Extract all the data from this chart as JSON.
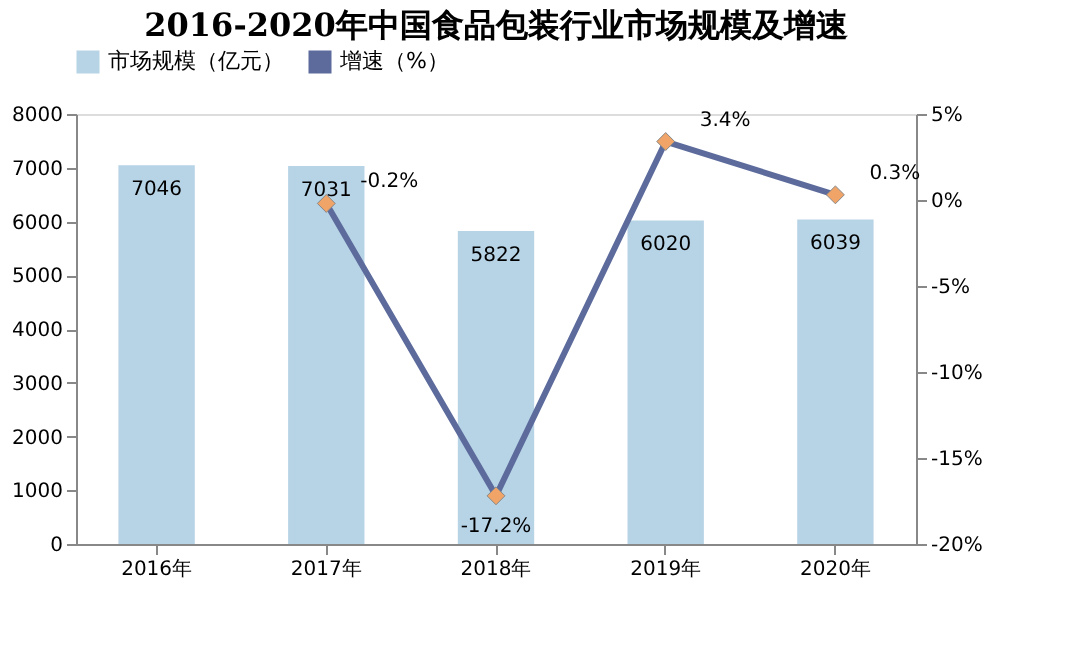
{
  "chart_data": {
    "type": "bar",
    "title": "2016-2020年中国食品包装行业市场规模及增速",
    "categories": [
      "2016年",
      "2017年",
      "2018年",
      "2019年",
      "2020年"
    ],
    "series": [
      {
        "name": "市场规模（亿元）",
        "color": "#b7d3e6",
        "values": [
          7046,
          7031,
          5822,
          6020,
          6039
        ],
        "value_labels": [
          "7046",
          "7031",
          "5822",
          "6020",
          "6039"
        ]
      },
      {
        "name": "增速（%）",
        "type": "line",
        "axis": "y2",
        "color": "#5c6b9c",
        "colors": [
          null,
          "#f0a468",
          "#f0a468",
          "#f0a468",
          "#f0a468"
        ],
        "marker": "diamond",
        "values": [
          null,
          -0.2,
          -17.2,
          3.4,
          0.3
        ],
        "value_labels": [
          null,
          "-0.2%",
          "-17.2%",
          "3.4%",
          "0.3%"
        ]
      }
    ],
    "ylim": [
      0,
      8000
    ],
    "yticks": [
      0,
      1000,
      2000,
      3000,
      4000,
      5000,
      6000,
      7000,
      8000
    ],
    "y2lim": [
      -20,
      5
    ],
    "y2ticks": [
      {
        "value": -20,
        "label": "-20%"
      },
      {
        "value": -15,
        "label": "-15%"
      },
      {
        "value": -10,
        "label": "-10%"
      },
      {
        "value": -5,
        "label": "-5%"
      },
      {
        "value": 0,
        "label": "0%"
      },
      {
        "value": 5,
        "label": "5%"
      }
    ],
    "legend": "top",
    "grid": false
  }
}
